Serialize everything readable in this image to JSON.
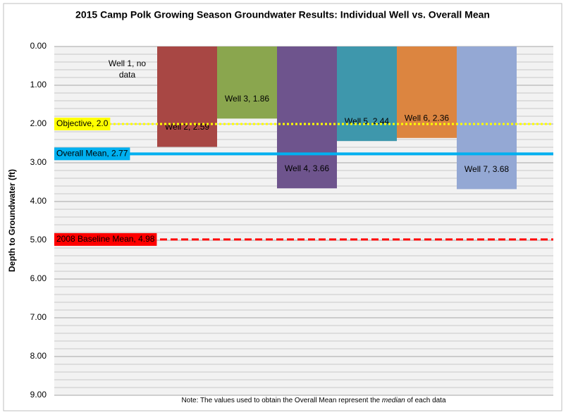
{
  "chart_data": {
    "type": "bar",
    "title": "2015 Camp Polk Growing Season Groundwater Results: Individual Well vs. Overall Mean",
    "y_label": "Depth to Groundwater (ft)",
    "y_inverted": true,
    "categories": [
      "Well 1",
      "Well 2",
      "Well 3",
      "Well 4",
      "Well 5",
      "Well 6",
      "Well 7"
    ],
    "values": [
      null,
      2.59,
      1.86,
      3.66,
      2.44,
      2.36,
      3.68
    ],
    "value_labels": [
      "Well 1, no data",
      "Well 2, 2.59",
      "Well 3, 1.86",
      "Well 4, 3.66",
      "Well 5, 2.44",
      "Well 6, 2.36",
      "Well 7, 3.68"
    ],
    "colors": [
      "#a84744",
      "#a84744",
      "#8aa64e",
      "#6e548d",
      "#3e97ac",
      "#dc8540",
      "#94a8d4"
    ],
    "ylim": [
      0,
      9
    ],
    "yticks": [
      {
        "value": 0,
        "label": "0.00"
      },
      {
        "value": 1,
        "label": "1.00"
      },
      {
        "value": 2,
        "label": "2.00"
      },
      {
        "value": 3,
        "label": "3.00"
      },
      {
        "value": 4,
        "label": "4.00"
      },
      {
        "value": 5,
        "label": "5.00"
      },
      {
        "value": 6,
        "label": "6.00"
      },
      {
        "value": 7,
        "label": "7.00"
      },
      {
        "value": 8,
        "label": "8.00"
      },
      {
        "value": 9,
        "label": "9.00"
      }
    ],
    "minor_yticks": [
      0.2,
      0.4,
      0.6,
      0.8,
      1.2,
      1.4,
      1.6,
      1.8,
      2.2,
      2.4,
      2.6,
      2.8,
      3.2,
      3.4,
      3.6,
      3.8,
      4.2,
      4.4,
      4.6,
      4.8,
      5.2,
      5.4,
      5.6,
      5.8,
      6.2,
      6.4,
      6.6,
      6.8,
      7.2,
      7.4,
      7.6,
      7.8,
      8.2,
      8.4,
      8.6,
      8.8
    ],
    "grid": true,
    "reference_lines": [
      {
        "label": "Objective, 2.0",
        "value": 2.0,
        "color": "#ffff00",
        "style": "dotted"
      },
      {
        "label": "Overall Mean, 2.77",
        "value": 2.77,
        "color": "#00b0f0",
        "style": "solid"
      },
      {
        "label": "2008 Baseline Mean, 4.98",
        "value": 4.98,
        "color": "#ff0000",
        "style": "dashed"
      }
    ],
    "note": [
      "Note: The values used to obtain the Overall Mean represent the ",
      "median",
      " of each data"
    ]
  }
}
